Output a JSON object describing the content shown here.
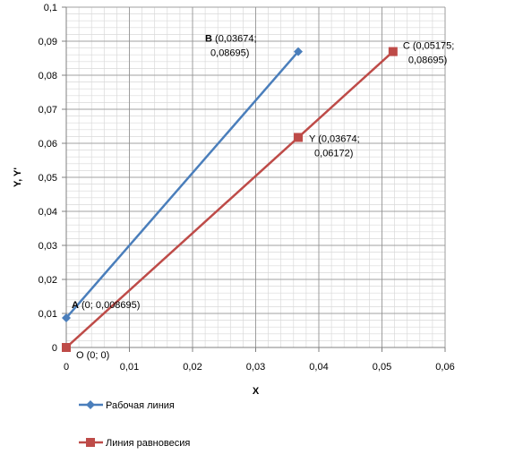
{
  "chart_data": {
    "type": "line",
    "xlabel": "X",
    "ylabel": "Y, Y'",
    "xlim": [
      0,
      0.06
    ],
    "ylim": [
      0,
      0.1
    ],
    "x_ticks": [
      0,
      0.01,
      0.02,
      0.03,
      0.04,
      0.05,
      0.06
    ],
    "x_tick_labels": [
      "0",
      "0,01",
      "0,02",
      "0,03",
      "0,04",
      "0,05",
      "0,06"
    ],
    "y_ticks": [
      0,
      0.01,
      0.02,
      0.03,
      0.04,
      0.05,
      0.06,
      0.07,
      0.08,
      0.09,
      0.1
    ],
    "y_tick_labels": [
      "0",
      "0,01",
      "0,02",
      "0,03",
      "0,04",
      "0,05",
      "0,06",
      "0,07",
      "0,08",
      "0,09",
      "0,1"
    ],
    "grid": true,
    "legend_position": "bottom",
    "series": [
      {
        "name": "Рабочая линия",
        "color": "#4a7ebb",
        "marker": "diamond",
        "points": [
          {
            "x": 0,
            "y": 0.008695
          },
          {
            "x": 0.03674,
            "y": 0.08695
          }
        ]
      },
      {
        "name": "Линия равновесия",
        "color": "#be4b48",
        "marker": "square",
        "points": [
          {
            "x": 0,
            "y": 0
          },
          {
            "x": 0.03674,
            "y": 0.06172
          },
          {
            "x": 0.05175,
            "y": 0.08695
          }
        ]
      }
    ],
    "annotations": [
      {
        "letter": "A",
        "bold": true,
        "text": " (0; 0,008695)",
        "x": 0,
        "y": 0.008695
      },
      {
        "letter": "B",
        "bold": true,
        "text": " (0,03674;",
        "text2": "0,08695)",
        "x": 0.03674,
        "y": 0.08695
      },
      {
        "letter": "C",
        "bold": false,
        "text": " (0,05175;",
        "text2": "0,08695)",
        "x": 0.05175,
        "y": 0.08695
      },
      {
        "letter": "Y",
        "bold": false,
        "text": " (0,03674;",
        "text2": "0,06172)",
        "x": 0.03674,
        "y": 0.06172
      },
      {
        "letter": "O",
        "bold": false,
        "text": " (0; 0)",
        "x": 0,
        "y": 0
      }
    ]
  }
}
